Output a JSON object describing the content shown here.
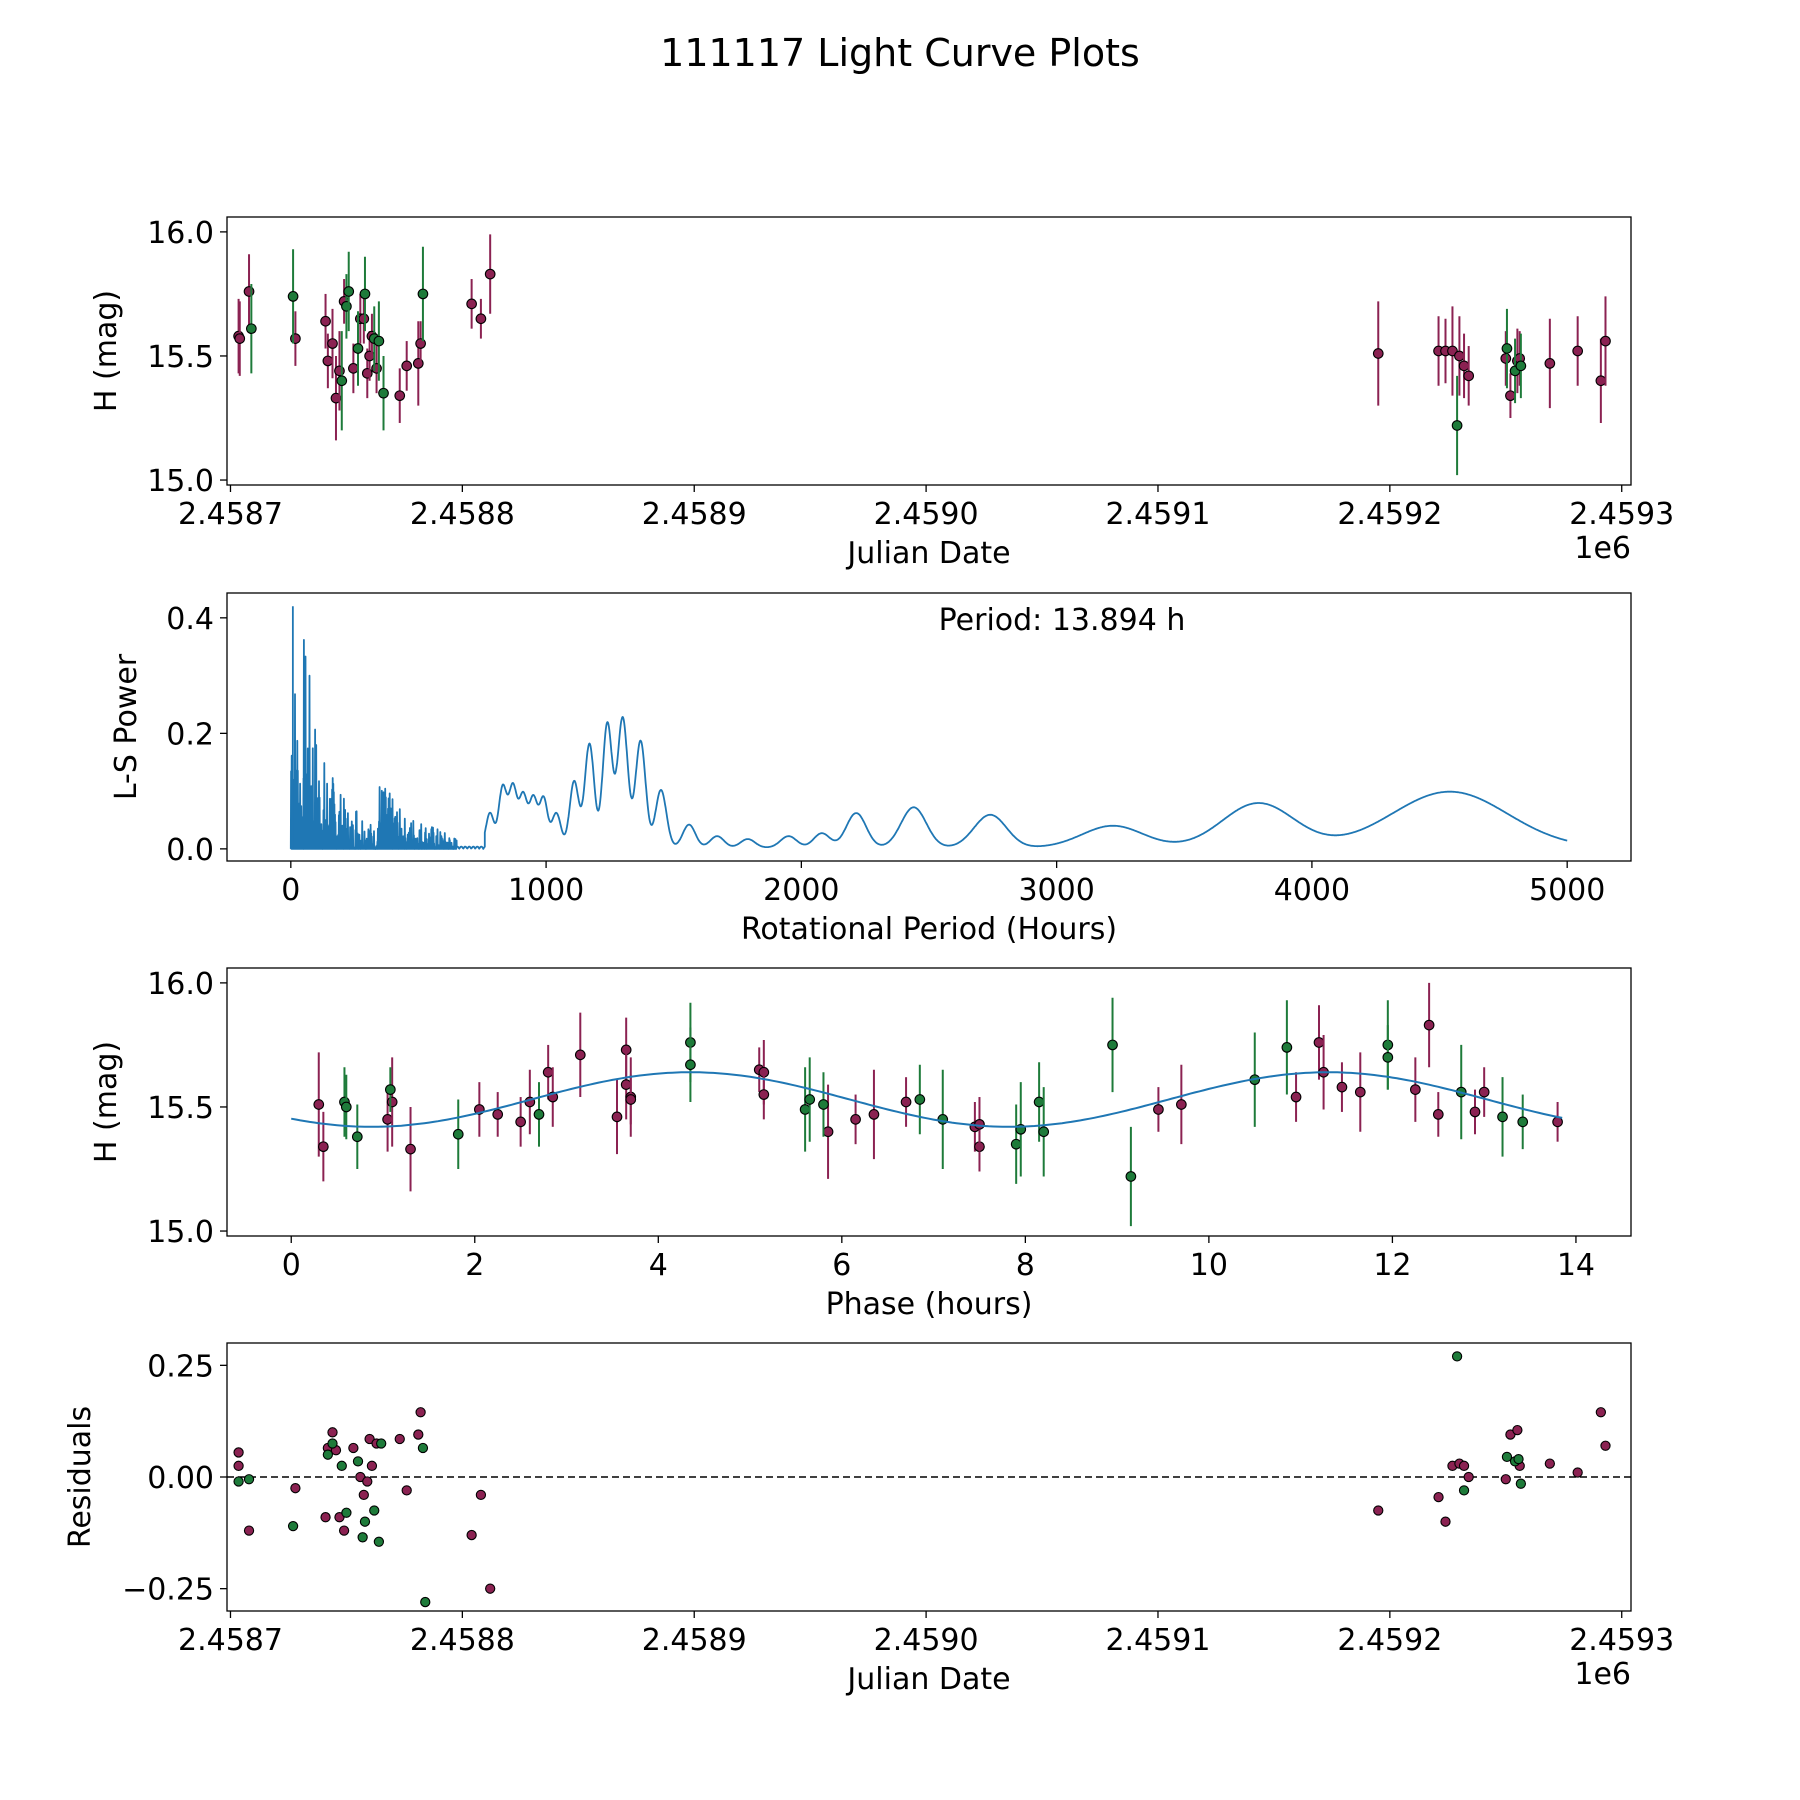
{
  "figure_title": "111117 Light Curve Plots",
  "colors": {
    "purple": "#8b2252",
    "green": "#1e7b3a",
    "curve": "#1f77b4",
    "marker_edge": "#000000"
  },
  "chart_data": [
    {
      "type": "scatter",
      "name": "light-curve",
      "xlabel": "Julian Date",
      "ylabel": "H (mag)",
      "offset_label": "1e6",
      "xlim": [
        2458698.5,
        2459304
      ],
      "ylim": [
        14.98,
        16.06
      ],
      "xticks": [
        2458700,
        2458800,
        2458900,
        2459000,
        2459100,
        2459200,
        2459300
      ],
      "xtick_labels": [
        "2.4587",
        "2.4588",
        "2.4589",
        "2.4590",
        "2.4591",
        "2.4592",
        "2.4593"
      ],
      "yticks": [
        15.0,
        15.5,
        16.0
      ],
      "ytick_labels": [
        "15.0",
        "15.5",
        "16.0"
      ],
      "series": [
        {
          "name": "purple",
          "color": "#8b2252",
          "x": [
            2458703.5,
            2458704,
            2458708,
            2458728,
            2458741,
            2458742,
            2458744,
            2458745.5,
            2458747,
            2458749,
            2458753,
            2458756,
            2458757.5,
            2458759,
            2458760,
            2458761,
            2458763,
            2458773,
            2458776,
            2458781,
            2458782,
            2458804,
            2458808,
            2458812,
            2459195,
            2459221,
            2459224,
            2459227,
            2459230,
            2459232,
            2459234,
            2459250,
            2459252,
            2459255,
            2459256,
            2459269,
            2459281,
            2459291,
            2459293
          ],
          "y": [
            15.58,
            15.57,
            15.76,
            15.57,
            15.64,
            15.48,
            15.55,
            15.33,
            15.44,
            15.72,
            15.45,
            15.65,
            15.65,
            15.43,
            15.5,
            15.58,
            15.45,
            15.34,
            15.46,
            15.47,
            15.55,
            15.71,
            15.65,
            15.83,
            15.51,
            15.52,
            15.52,
            15.52,
            15.5,
            15.46,
            15.42,
            15.49,
            15.34,
            15.48,
            15.49,
            15.47,
            15.52,
            15.4,
            15.56
          ],
          "err": [
            0.15,
            0.15,
            0.15,
            0.11,
            0.11,
            0.11,
            0.14,
            0.17,
            0.16,
            0.09,
            0.1,
            0.1,
            0.1,
            0.1,
            0.1,
            0.09,
            0.1,
            0.11,
            0.1,
            0.17,
            0.09,
            0.1,
            0.08,
            0.16,
            0.21,
            0.14,
            0.13,
            0.18,
            0.16,
            0.13,
            0.12,
            0.11,
            0.09,
            0.13,
            0.11,
            0.18,
            0.14,
            0.17,
            0.18
          ]
        },
        {
          "name": "green",
          "color": "#1e7b3a",
          "x": [
            2458709,
            2458727,
            2458748,
            2458750,
            2458751,
            2458755,
            2458758,
            2458762,
            2458764,
            2458766,
            2458783,
            2459229,
            2459250.5,
            2459254,
            2459256.5
          ],
          "y": [
            15.61,
            15.74,
            15.4,
            15.7,
            15.76,
            15.53,
            15.75,
            15.57,
            15.56,
            15.35,
            15.75,
            15.22,
            15.53,
            15.44,
            15.46
          ],
          "err": [
            0.18,
            0.19,
            0.2,
            0.13,
            0.16,
            0.15,
            0.15,
            0.13,
            0.16,
            0.15,
            0.19,
            0.2,
            0.16,
            0.13,
            0.13
          ]
        }
      ]
    },
    {
      "type": "line",
      "name": "periodogram",
      "xlabel": "Rotational Period (Hours)",
      "ylabel": "L-S Power",
      "annotation": "Period: 13.894 h",
      "xlim": [
        -250,
        5250
      ],
      "ylim": [
        -0.021,
        0.443
      ],
      "xticks": [
        0,
        1000,
        2000,
        3000,
        4000,
        5000
      ],
      "xtick_labels": [
        "0",
        "1000",
        "2000",
        "3000",
        "4000",
        "5000"
      ],
      "yticks": [
        0.0,
        0.2,
        0.4
      ],
      "ytick_labels": [
        "0.0",
        "0.2",
        "0.4"
      ],
      "spikes": [
        {
          "x0": 0,
          "x1": 50,
          "maxv": 0.42
        },
        {
          "x0": 50,
          "x1": 130,
          "maxv": 0.38
        },
        {
          "x0": 130,
          "x1": 250,
          "maxv": 0.16
        },
        {
          "x0": 250,
          "x1": 340,
          "maxv": 0.09
        },
        {
          "x0": 340,
          "x1": 470,
          "maxv": 0.13
        },
        {
          "x0": 470,
          "x1": 650,
          "maxv": 0.06
        }
      ],
      "peaks": [
        {
          "x": 780,
          "y": 0.06,
          "w": 22
        },
        {
          "x": 830,
          "y": 0.105,
          "w": 22
        },
        {
          "x": 870,
          "y": 0.105,
          "w": 22
        },
        {
          "x": 910,
          "y": 0.09,
          "w": 22
        },
        {
          "x": 950,
          "y": 0.085,
          "w": 22
        },
        {
          "x": 990,
          "y": 0.085,
          "w": 22
        },
        {
          "x": 1040,
          "y": 0.06,
          "w": 25
        },
        {
          "x": 1110,
          "y": 0.115,
          "w": 25
        },
        {
          "x": 1170,
          "y": 0.18,
          "w": 26
        },
        {
          "x": 1240,
          "y": 0.215,
          "w": 26
        },
        {
          "x": 1300,
          "y": 0.225,
          "w": 28
        },
        {
          "x": 1370,
          "y": 0.185,
          "w": 28
        },
        {
          "x": 1450,
          "y": 0.1,
          "w": 30
        },
        {
          "x": 1560,
          "y": 0.04,
          "w": 35
        },
        {
          "x": 1670,
          "y": 0.02,
          "w": 38
        },
        {
          "x": 1790,
          "y": 0.015,
          "w": 40
        },
        {
          "x": 1950,
          "y": 0.02,
          "w": 45
        },
        {
          "x": 2080,
          "y": 0.025,
          "w": 45
        },
        {
          "x": 2215,
          "y": 0.06,
          "w": 55
        },
        {
          "x": 2440,
          "y": 0.07,
          "w": 70
        },
        {
          "x": 2740,
          "y": 0.057,
          "w": 90
        },
        {
          "x": 3220,
          "y": 0.038,
          "w": 170
        },
        {
          "x": 3790,
          "y": 0.077,
          "w": 200
        },
        {
          "x": 4540,
          "y": 0.097,
          "w": 320
        }
      ]
    },
    {
      "type": "scatter",
      "name": "phase-folded",
      "xlabel": "Phase (hours)",
      "ylabel": "H (mag)",
      "xlim": [
        -0.7,
        14.6
      ],
      "ylim": [
        14.98,
        16.06
      ],
      "xticks": [
        0,
        2,
        4,
        6,
        8,
        10,
        12,
        14
      ],
      "xtick_labels": [
        "0",
        "2",
        "4",
        "6",
        "8",
        "10",
        "12",
        "14"
      ],
      "yticks": [
        15.0,
        15.5,
        16.0
      ],
      "ytick_labels": [
        "15.0",
        "15.5",
        "16.0"
      ],
      "model": {
        "mean": 15.53,
        "amplitude": 0.11,
        "peak_phase": 4.35,
        "period": 13.894
      },
      "series": [
        {
          "name": "purple",
          "color": "#8b2252",
          "x": [
            0.3,
            0.35,
            1.05,
            1.1,
            1.3,
            2.05,
            2.25,
            2.5,
            2.6,
            2.8,
            2.85,
            3.15,
            3.55,
            3.65,
            3.65,
            3.7,
            3.7,
            5.1,
            5.15,
            5.15,
            5.85,
            6.15,
            6.35,
            6.7,
            7.45,
            7.5,
            7.5,
            9.45,
            9.7,
            10.95,
            11.2,
            11.25,
            11.45,
            11.65,
            12.25,
            12.4,
            12.5,
            12.9,
            13.0,
            13.8
          ],
          "y": [
            15.51,
            15.34,
            15.45,
            15.52,
            15.33,
            15.49,
            15.47,
            15.44,
            15.52,
            15.64,
            15.54,
            15.71,
            15.46,
            15.73,
            15.59,
            15.54,
            15.53,
            15.65,
            15.64,
            15.55,
            15.4,
            15.45,
            15.47,
            15.52,
            15.42,
            15.34,
            15.43,
            15.49,
            15.51,
            15.54,
            15.76,
            15.64,
            15.58,
            15.56,
            15.57,
            15.83,
            15.47,
            15.48,
            15.56,
            15.44
          ],
          "err": [
            0.21,
            0.14,
            0.13,
            0.18,
            0.17,
            0.11,
            0.09,
            0.1,
            0.13,
            0.11,
            0.12,
            0.17,
            0.15,
            0.13,
            0.14,
            0.16,
            0.1,
            0.09,
            0.13,
            0.1,
            0.19,
            0.1,
            0.18,
            0.1,
            0.1,
            0.1,
            0.11,
            0.09,
            0.16,
            0.1,
            0.15,
            0.15,
            0.1,
            0.16,
            0.13,
            0.17,
            0.09,
            0.09,
            0.1,
            0.08
          ]
        },
        {
          "name": "green",
          "color": "#1e7b3a",
          "x": [
            0.58,
            0.6,
            0.72,
            1.08,
            1.82,
            2.7,
            4.35,
            4.35,
            5.6,
            5.65,
            5.8,
            6.85,
            7.1,
            7.9,
            7.95,
            8.15,
            8.2,
            8.95,
            9.15,
            10.5,
            10.85,
            11.95,
            11.95,
            12.75,
            13.2,
            13.42
          ],
          "y": [
            15.52,
            15.5,
            15.38,
            15.57,
            15.39,
            15.47,
            15.76,
            15.67,
            15.49,
            15.53,
            15.51,
            15.53,
            15.45,
            15.35,
            15.41,
            15.52,
            15.4,
            15.75,
            15.22,
            15.61,
            15.74,
            15.75,
            15.7,
            15.56,
            15.46,
            15.44
          ],
          "err": [
            0.14,
            0.13,
            0.13,
            0.09,
            0.14,
            0.13,
            0.16,
            0.15,
            0.17,
            0.17,
            0.13,
            0.14,
            0.2,
            0.16,
            0.19,
            0.16,
            0.18,
            0.19,
            0.2,
            0.19,
            0.19,
            0.18,
            0.13,
            0.19,
            0.16,
            0.11
          ]
        }
      ]
    },
    {
      "type": "scatter",
      "name": "residuals",
      "xlabel": "Julian Date",
      "ylabel": "Residuals",
      "offset_label": "1e6",
      "xlim": [
        2458698.5,
        2459304
      ],
      "ylim": [
        -0.3,
        0.3
      ],
      "xticks": [
        2458700,
        2458800,
        2458900,
        2459000,
        2459100,
        2459200,
        2459300
      ],
      "xtick_labels": [
        "2.4587",
        "2.4588",
        "2.4589",
        "2.4590",
        "2.4591",
        "2.4592",
        "2.4593"
      ],
      "yticks": [
        -0.25,
        0.0,
        0.25
      ],
      "ytick_labels": [
        "−0.25",
        "0.00",
        "0.25"
      ],
      "reference_line": 0,
      "series": [
        {
          "name": "purple",
          "color": "#8b2252",
          "x": [
            2458703.5,
            2458703.5,
            2458708,
            2458728,
            2458741,
            2458742,
            2458744,
            2458745.5,
            2458747,
            2458749,
            2458753,
            2458756,
            2458757.5,
            2458759,
            2458760,
            2458761,
            2458763,
            2458773,
            2458776,
            2458781,
            2458782,
            2458804,
            2458808,
            2458812,
            2459195,
            2459221,
            2459224,
            2459227,
            2459230,
            2459232,
            2459234,
            2459250,
            2459252,
            2459255,
            2459256,
            2459269,
            2459281,
            2459291,
            2459293
          ],
          "y": [
            0.055,
            0.025,
            -0.12,
            -0.025,
            -0.09,
            0.065,
            0.1,
            0.06,
            -0.09,
            -0.12,
            0.065,
            0.0,
            -0.04,
            -0.01,
            0.085,
            0.025,
            0.075,
            0.085,
            -0.03,
            0.095,
            0.145,
            -0.13,
            -0.04,
            -0.25,
            -0.075,
            -0.045,
            -0.1,
            0.025,
            0.03,
            0.025,
            0.0,
            -0.005,
            0.095,
            0.105,
            0.025,
            0.03,
            0.01,
            0.145,
            0.07
          ],
          "radius": 4.6
        },
        {
          "name": "green",
          "color": "#1e7b3a",
          "x": [
            2458703.5,
            2458708,
            2458727,
            2458742,
            2458744,
            2458748,
            2458750,
            2458755,
            2458757,
            2458758,
            2458762,
            2458764,
            2458765,
            2458783,
            2458784,
            2459229,
            2459232,
            2459250.5,
            2459254,
            2459255.5,
            2459256.5
          ],
          "y": [
            -0.01,
            -0.005,
            -0.11,
            0.05,
            0.075,
            0.025,
            -0.08,
            0.035,
            -0.135,
            -0.1,
            -0.075,
            -0.145,
            0.075,
            0.065,
            -0.28,
            0.27,
            -0.03,
            0.045,
            0.035,
            0.04,
            -0.015
          ],
          "radius": 4.6
        }
      ]
    }
  ]
}
